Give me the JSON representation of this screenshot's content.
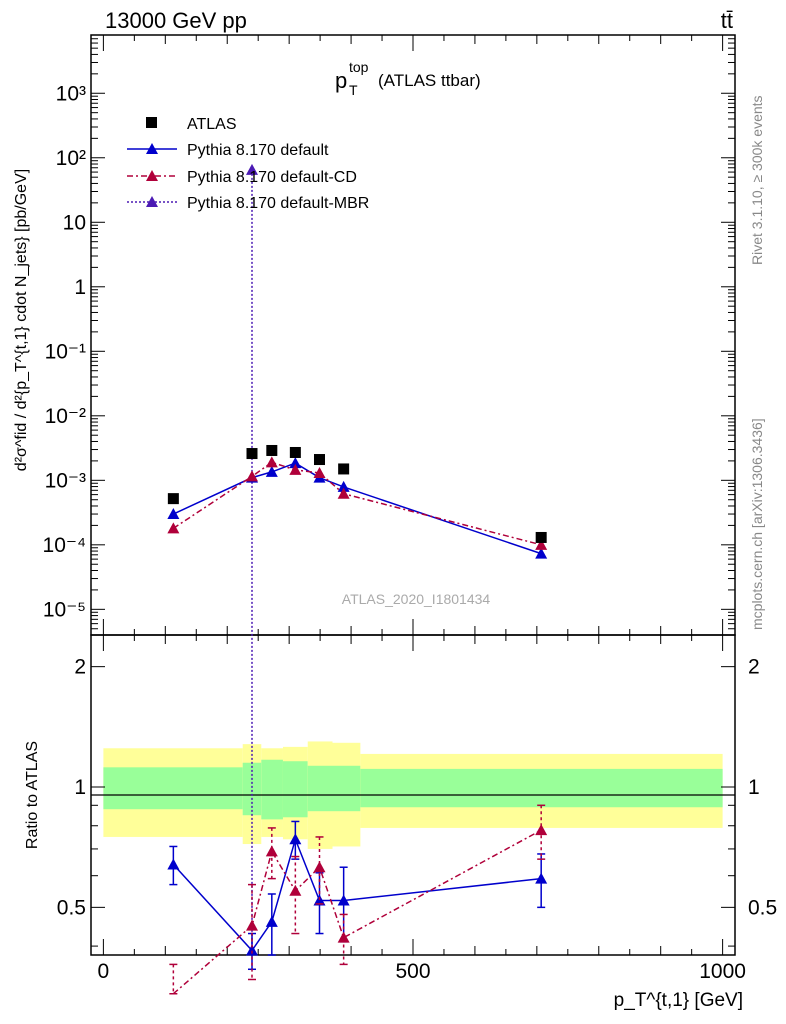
{
  "header": {
    "energy_label": "13000 GeV pp",
    "process_label": "tt̄",
    "title_main": "p",
    "title_sub": "T",
    "title_sup": "top",
    "title_rest": "(ATLAS ttbar)",
    "watermark": "ATLAS_2020_I1801434",
    "side_rivet": "Rivet 3.1.10, ≥ 300k events",
    "side_mcplots": "mcplots.cern.ch [arXiv:1306.3436]"
  },
  "axes": {
    "ylabel_main": "d²σ^fid / d²{p_T^{t,1} cdot N_jets} [pb/GeV]",
    "ylabel_ratio": "Ratio to ATLAS",
    "xlabel": "p_T^{t,1} [GeV]",
    "x_ticks": [
      "0",
      "500",
      "1000"
    ],
    "y_ticks_main": [
      "10⁻⁵",
      "10⁻⁴",
      "10⁻³",
      "10⁻²",
      "10⁻¹",
      "1",
      "10",
      "10²",
      "10³"
    ],
    "y_ticks_ratio": [
      "0.5",
      "1",
      "2"
    ]
  },
  "legend": {
    "atlas": "ATLAS",
    "default": "Pythia 8.170 default",
    "cd": "Pythia 8.170 default-CD",
    "mbr": "Pythia 8.170 default-MBR"
  },
  "colors": {
    "default": "#0000cc",
    "cd": "#b0003a",
    "mbr": "#4b1ab4",
    "band_inner": "#99ff99",
    "band_outer": "#ffff99"
  },
  "chart_data": {
    "type": "scatter",
    "xlim": [
      -20,
      1020
    ],
    "ylim_main": [
      4e-06,
      8000
    ],
    "ylim_ratio": [
      0.38,
      2.4
    ],
    "xlabel": "p_T^{t,1} [GeV]",
    "ylabel": "d²σ^fid / d²{p_T^{t,1} cdot N_jets} [pb/GeV]",
    "bins": [
      {
        "lo": 0,
        "hi": 225,
        "x": 113,
        "atlas": 0.00052,
        "stat": 0.12,
        "tot": 0.25
      },
      {
        "lo": 225,
        "hi": 255,
        "x": 240,
        "atlas": 0.0026,
        "stat": 0.15,
        "tot": 0.28
      },
      {
        "lo": 255,
        "hi": 290,
        "x": 272,
        "atlas": 0.0029,
        "stat": 0.17,
        "tot": 0.25
      },
      {
        "lo": 290,
        "hi": 330,
        "x": 310,
        "atlas": 0.0027,
        "stat": 0.16,
        "tot": 0.26
      },
      {
        "lo": 330,
        "hi": 370,
        "x": 349,
        "atlas": 0.0021,
        "stat": 0.13,
        "tot": 0.3
      },
      {
        "lo": 370,
        "hi": 415,
        "x": 388,
        "atlas": 0.0015,
        "stat": 0.13,
        "tot": 0.29
      },
      {
        "lo": 415,
        "hi": 1000,
        "x": 707,
        "atlas": 0.00013,
        "stat": 0.11,
        "tot": 0.21
      }
    ],
    "series": [
      {
        "name": "Pythia 8.170 default",
        "key": "default",
        "x": [
          113,
          240,
          272,
          310,
          349,
          388,
          707
        ],
        "values": [
          0.0003,
          0.0011,
          0.00135,
          0.00185,
          0.0011,
          0.00079,
          7.3e-05
        ],
        "ratio": [
          0.64,
          0.39,
          0.46,
          0.74,
          0.52,
          0.52,
          0.59
        ],
        "ratio_err": [
          0.07,
          0.04,
          0.08,
          0.08,
          0.09,
          0.11,
          0.09
        ],
        "line": "solid"
      },
      {
        "name": "Pythia 8.170 default-CD",
        "key": "cd",
        "x": [
          113,
          240,
          272,
          310,
          349,
          388,
          707
        ],
        "values": [
          0.00018,
          0.00115,
          0.0019,
          0.00145,
          0.0013,
          0.00062,
          0.0001
        ],
        "ratio": [
          0.3,
          0.45,
          0.69,
          0.55,
          0.63,
          0.42,
          0.78
        ],
        "ratio_err": [
          0.06,
          0.12,
          0.1,
          0.12,
          0.12,
          0.06,
          0.12
        ],
        "line": "dashdot"
      },
      {
        "name": "Pythia 8.170 default-MBR",
        "key": "mbr",
        "x": [
          240
        ],
        "values": [
          65
        ],
        "ratio": [],
        "ratio_err": [],
        "line": "dotted"
      }
    ]
  }
}
